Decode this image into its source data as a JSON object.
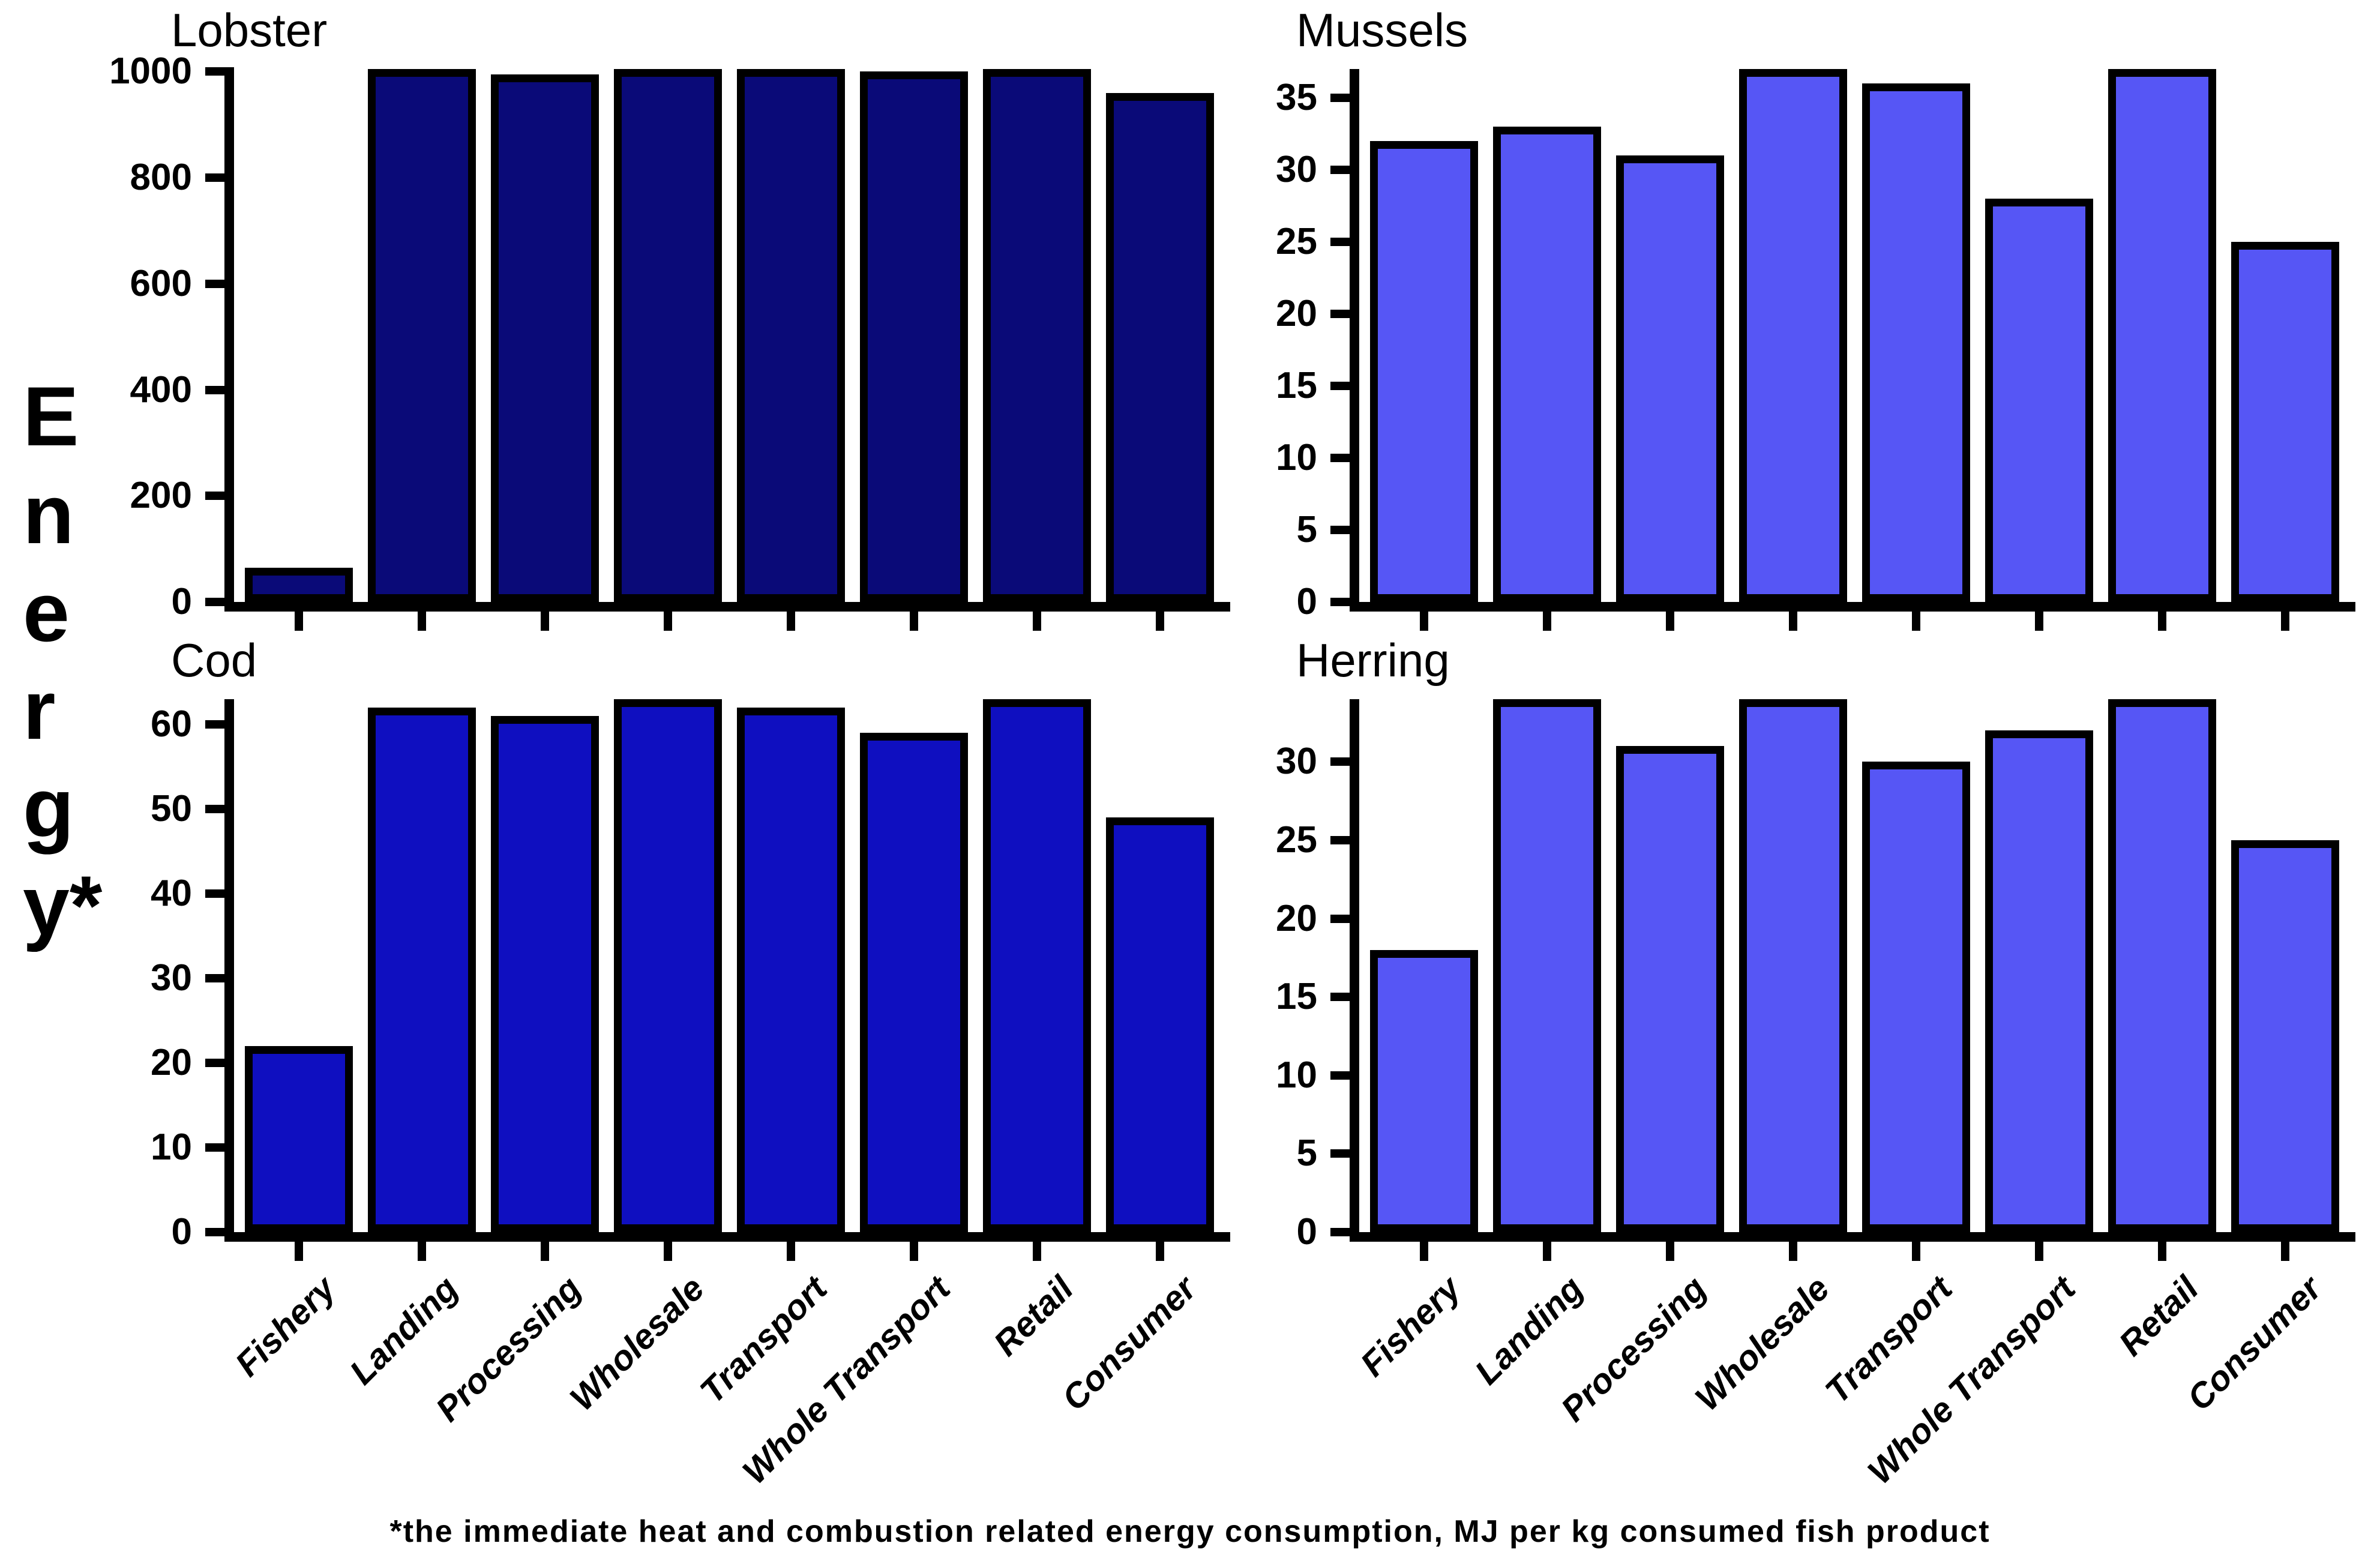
{
  "figure": {
    "y_axis_label": "Energy*",
    "y_axis_letters": [
      "E",
      "n",
      "e",
      "r",
      "g",
      "y*"
    ],
    "footnote": "*the immediate heat and combustion related energy consumption, MJ per kg consumed fish product"
  },
  "categories": [
    "Fishery",
    "Landing",
    "Processing",
    "Wholesale",
    "Transport",
    "Whole Transport",
    "Retail",
    "Consumer"
  ],
  "colors": {
    "lobster_fill": "#0a0a78",
    "cod_fill": "#0f0fc0",
    "mussels_fill": "#5656f5",
    "herring_fill": "#5656f5",
    "outline": "#000000",
    "background": "#ffffff"
  },
  "chart_data": [
    {
      "type": "bar",
      "title": "Lobster",
      "panel": "top-left",
      "bar_color": "#0a0a78",
      "ylim": [
        0,
        1005
      ],
      "yticks": [
        0,
        200,
        400,
        600,
        800,
        1000
      ],
      "categories": [
        "Fishery",
        "Landing",
        "Processing",
        "Wholesale",
        "Transport",
        "Whole Transport",
        "Retail",
        "Consumer"
      ],
      "values": [
        65,
        1005,
        995,
        1005,
        1005,
        1000,
        1005,
        960
      ],
      "x_tick_labels_visible": false,
      "grid": false,
      "legend": false
    },
    {
      "type": "bar",
      "title": "Mussels",
      "panel": "top-right",
      "bar_color": "#5656f5",
      "ylim": [
        0,
        37
      ],
      "yticks": [
        0,
        5,
        10,
        15,
        20,
        25,
        30,
        35
      ],
      "categories": [
        "Fishery",
        "Landing",
        "Processing",
        "Wholesale",
        "Transport",
        "Whole Transport",
        "Retail",
        "Consumer"
      ],
      "values": [
        32,
        33,
        31,
        37,
        36,
        28,
        37,
        25
      ],
      "x_tick_labels_visible": false,
      "grid": false,
      "legend": false
    },
    {
      "type": "bar",
      "title": "Cod",
      "panel": "bottom-left",
      "bar_color": "#0f0fc0",
      "ylim": [
        0,
        63
      ],
      "yticks": [
        0,
        10,
        20,
        30,
        40,
        50,
        60
      ],
      "categories": [
        "Fishery",
        "Landing",
        "Processing",
        "Wholesale",
        "Transport",
        "Whole Transport",
        "Retail",
        "Consumer"
      ],
      "values": [
        22,
        62,
        61,
        63,
        62,
        59,
        63,
        49
      ],
      "x_tick_labels_visible": true,
      "grid": false,
      "legend": false
    },
    {
      "type": "bar",
      "title": "Herring",
      "panel": "bottom-right",
      "bar_color": "#5656f5",
      "ylim": [
        0,
        34
      ],
      "yticks": [
        0,
        5,
        10,
        15,
        20,
        25,
        30
      ],
      "categories": [
        "Fishery",
        "Landing",
        "Processing",
        "Wholesale",
        "Transport",
        "Whole Transport",
        "Retail",
        "Consumer"
      ],
      "values": [
        18,
        34,
        31,
        34,
        30,
        32,
        34,
        25
      ],
      "x_tick_labels_visible": true,
      "grid": false,
      "legend": false
    }
  ]
}
